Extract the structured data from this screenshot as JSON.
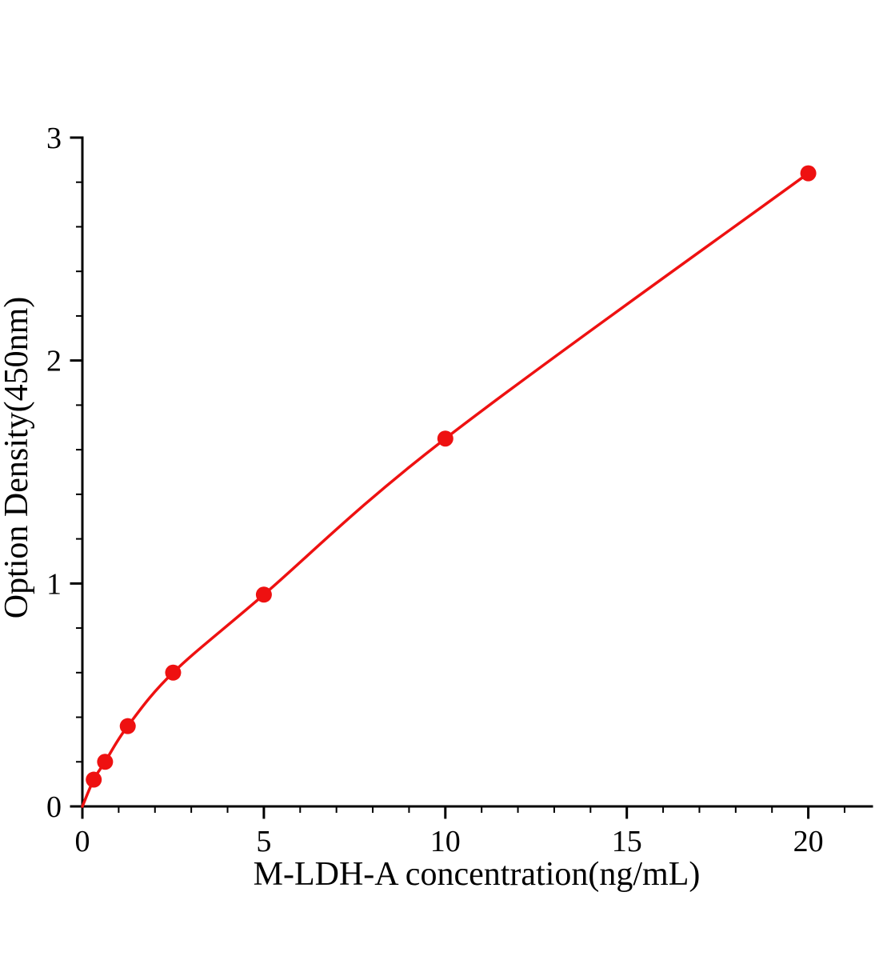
{
  "chart_data": {
    "type": "line",
    "title": "",
    "xlabel": "M-LDH-A concentration(ng/mL)",
    "ylabel": "Option Density(450nm)",
    "x": [
      0.313,
      0.625,
      1.25,
      2.5,
      5,
      10,
      20
    ],
    "y": [
      0.12,
      0.2,
      0.36,
      0.6,
      0.95,
      1.65,
      2.84
    ],
    "curve_origin": {
      "x": 0,
      "y": 0
    },
    "xlim": [
      0,
      21.75
    ],
    "ylim": [
      0,
      3
    ],
    "x_ticks": [
      0,
      5,
      10,
      15,
      20
    ],
    "y_ticks": [
      0,
      1,
      2,
      3
    ],
    "x_minor_step": 1,
    "y_minor_step": 0.2,
    "line_color": "#ee1111",
    "marker_color": "#ee1111",
    "marker_shape": "circle",
    "axis_color": "#000000",
    "background": "#ffffff",
    "grid": false,
    "legend": "none"
  }
}
